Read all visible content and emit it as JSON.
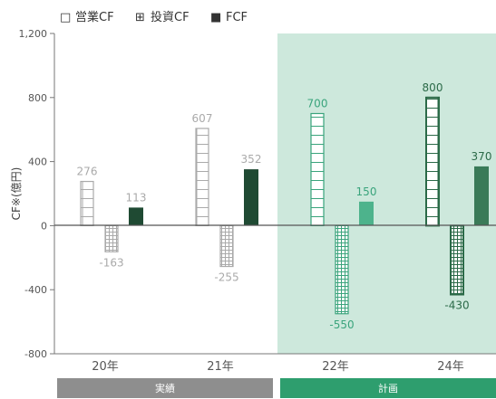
{
  "chart_data": {
    "type": "bar",
    "ylabel": "CF※(億円)",
    "ylim": [
      -800,
      1200
    ],
    "yticks": [
      "1,200",
      "800",
      "400",
      "0",
      "-400",
      "-800"
    ],
    "categories": [
      "20年",
      "21年",
      "22年",
      "24年"
    ],
    "series": [
      {
        "name": "営業CF",
        "values": [
          276,
          607,
          700,
          800
        ]
      },
      {
        "name": "投資CF",
        "values": [
          -163,
          -255,
          -550,
          -430
        ]
      },
      {
        "name": "FCF",
        "values": [
          113,
          352,
          150,
          370
        ]
      }
    ],
    "value_labels": {
      "営業CF": [
        "276",
        "607",
        "700",
        "800"
      ],
      "投資CF": [
        "-163",
        "-255",
        "-550",
        "-430"
      ],
      "FCF": [
        "113",
        "352",
        "150",
        "370"
      ]
    },
    "groups": [
      {
        "label": "実績",
        "categories": [
          "20年",
          "21年"
        ]
      },
      {
        "label": "計画",
        "categories": [
          "22年",
          "24年"
        ]
      }
    ],
    "legend_placement": "top-left",
    "grid": false
  },
  "legend": {
    "items": [
      {
        "marker": "□",
        "label": "営業CF"
      },
      {
        "marker": "⊞",
        "label": "投資CF"
      },
      {
        "marker": "■",
        "label": "FCF"
      }
    ]
  },
  "colors": {
    "actual_gray": "#aaaaaa",
    "actual_fcf": "#1f4a33",
    "plan_green": "#3aa47c",
    "plan_dark": "#2b6a48",
    "plan_fcf_light": "#4db38c",
    "plan_fcf_dark": "#3a7a58",
    "plan_bg": "#cde8dc",
    "band_actual": "#8e8e8e",
    "band_plan": "#2e9e6e"
  }
}
